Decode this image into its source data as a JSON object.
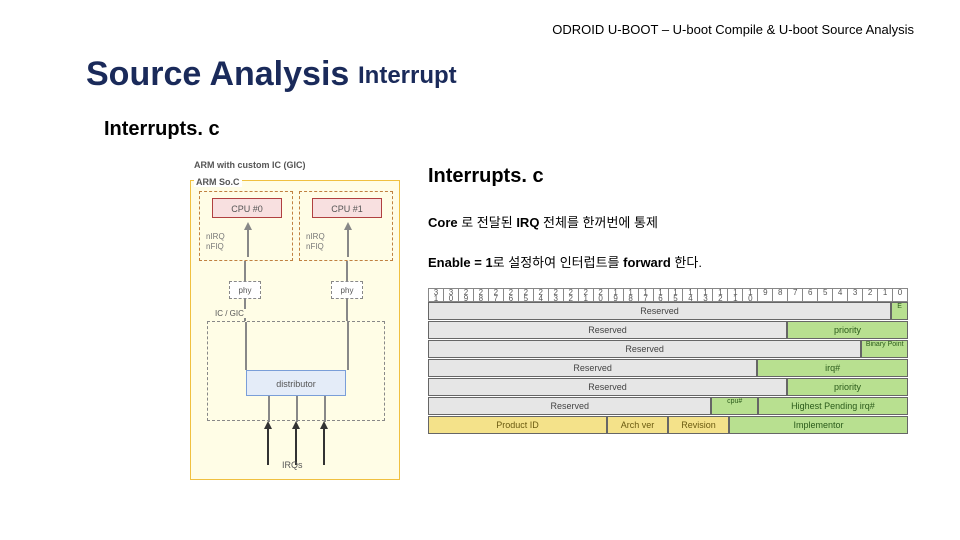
{
  "header": "ODROID U-BOOT – U-boot Compile & U-boot Source Analysis",
  "title": {
    "main": "Source Analysis",
    "sub": "Interrupt"
  },
  "left": {
    "heading": "Interrupts. c",
    "diagram": {
      "arm_label": "ARM with custom IC (GIC)",
      "soc_label": "ARM So.C",
      "cpu0": "CPU #0",
      "cpu1": "CPU #1",
      "irq_lines": "nIRQ\nnFIQ",
      "phy": "phy",
      "gic_label": "IC / GIC",
      "distributor": "distributor",
      "irqs": "IRQs"
    }
  },
  "right": {
    "heading": "Interrupts. c",
    "desc1_prefix": "Core ",
    "desc1_mid": "로 전달된 ",
    "desc1_bold2": "IRQ ",
    "desc1_rest": "전체를 한꺼번에 통제",
    "desc2_bold1": "Enable = 1",
    "desc2_mid": "로 설정하여 인터럽트를 ",
    "desc2_bold2": "forward ",
    "desc2_rest": "한다.",
    "bits": [
      "3\n1",
      "3\n0",
      "2\n9",
      "2\n8",
      "2\n7",
      "2\n6",
      "2\n5",
      "2\n4",
      "2\n3",
      "2\n2",
      "2\n1",
      "2\n0",
      "1\n9",
      "1\n8",
      "1\n7",
      "1\n6",
      "1\n5",
      "1\n4",
      "1\n3",
      "1\n2",
      "1\n1",
      "1\n0",
      "9",
      "8",
      "7",
      "6",
      "5",
      "4",
      "3",
      "2",
      "1",
      "0"
    ],
    "rows": [
      [
        {
          "label": "Reserved",
          "class": "grey",
          "span": 31
        },
        {
          "label": "E",
          "class": "green",
          "span": 1
        }
      ],
      [
        {
          "label": "Reserved",
          "class": "grey",
          "span": 24
        },
        {
          "label": "priority",
          "class": "green",
          "span": 8
        }
      ],
      [
        {
          "label": "Reserved",
          "class": "grey",
          "span": 29
        },
        {
          "label": "Binary Point",
          "class": "green",
          "span": 3
        }
      ],
      [
        {
          "label": "Reserved",
          "class": "grey",
          "span": 22
        },
        {
          "label": "irq#",
          "class": "green",
          "span": 10
        }
      ],
      [
        {
          "label": "Reserved",
          "class": "grey",
          "span": 24
        },
        {
          "label": "priority",
          "class": "green",
          "span": 8
        }
      ],
      [
        {
          "label": "Reserved",
          "class": "grey",
          "span": 19
        },
        {
          "label": "cpu#",
          "class": "green",
          "span": 3
        },
        {
          "label": "Highest Pending irq#",
          "class": "green",
          "span": 10
        }
      ],
      [
        {
          "label": "Product ID",
          "class": "yellow",
          "span": 12
        },
        {
          "label": "Arch ver",
          "class": "yellow",
          "span": 4
        },
        {
          "label": "Revision",
          "class": "yellow",
          "span": 4
        },
        {
          "label": "Implementor",
          "class": "green",
          "span": 12
        }
      ]
    ],
    "colors": {
      "grey": "#e6e6e6",
      "green": "#b8e090",
      "yellow": "#f4e28a",
      "border": "#666666"
    }
  }
}
